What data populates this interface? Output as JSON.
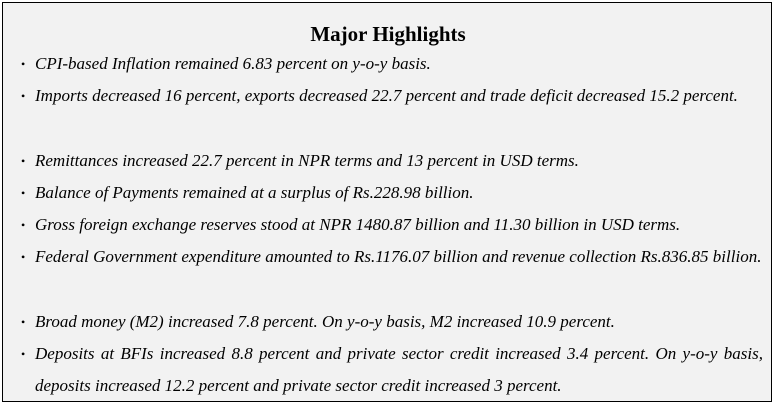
{
  "title": "Major Highlights",
  "bullet_glyph": "•",
  "items": [
    "CPI-based Inflation remained 6.83 percent on y-o-y basis.",
    "Imports decreased 16 percent, exports decreased 22.7 percent and trade deficit decreased 15.2 percent.",
    "Remittances increased 22.7 percent in NPR terms and 13  percent in USD terms.",
    "Balance of  Payments remained at a surplus of Rs.228.98 billion.",
    "Gross foreign exchange reserves stood at NPR 1480.87 billion and 11.30 billion in USD terms.",
    "Federal Government expenditure amounted to Rs.1176.07 billion and revenue collection Rs.836.85 billion.",
    "Broad money (M2) increased 7.8 percent. On y-o-y basis, M2 increased 10.9  percent.",
    "Deposits at BFIs increased 8.8 percent and private sector credit increased 3.4 percent. On y-o-y basis, deposits increased 12.2 percent and private sector credit increased 3 percent."
  ]
}
